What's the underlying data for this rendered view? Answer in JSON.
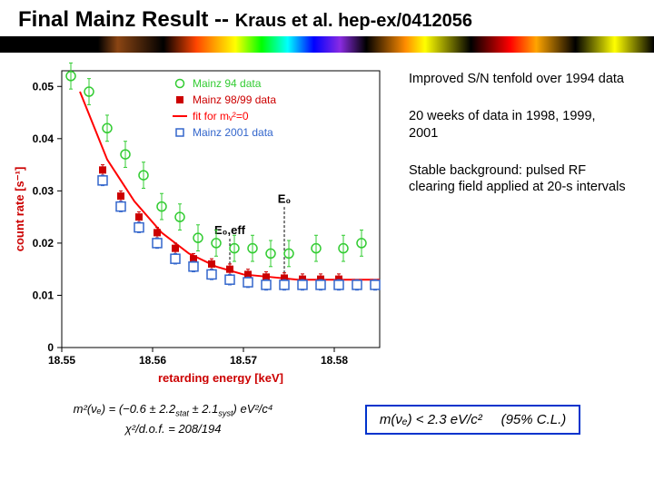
{
  "title": {
    "main": "Final Mainz Result -- ",
    "sub": "Kraus et al. hep-ex/0412056"
  },
  "notes": {
    "n1": "Improved S/N tenfold over 1994 data",
    "n2": "20 weeks of data in 1998, 1999, 2001",
    "n3": "Stable background: pulsed RF clearing field applied at 20-s intervals"
  },
  "formula": {
    "mass_sq": "m²(νₑ) = (−0.6 ± 2.2",
    "stat": "stat",
    "pm": " ± 2.1",
    "syst": "syst",
    "units1": ") eV²/c⁴",
    "chi2": "χ²/d.o.f. = 208/194",
    "limit": "m(νₑ) < 2.3 eV/c²",
    "cl": "(95% C.L.)"
  },
  "chart": {
    "type": "scatter",
    "background_color": "#ffffff",
    "axis_color": "#000000",
    "xlabel": "retarding energy  [keV]",
    "ylabel": "count rate [s⁻¹]",
    "label_color": "#cc0000",
    "label_fontsize": 13,
    "xlim": [
      18.55,
      18.585
    ],
    "xticks": [
      18.55,
      18.56,
      18.57,
      18.58
    ],
    "ylim": [
      0,
      0.053
    ],
    "yticks": [
      0,
      0.01,
      0.02,
      0.03,
      0.04,
      0.05
    ],
    "legend": {
      "items": [
        {
          "marker": "circle-open",
          "color": "#33cc33",
          "label": "Mainz 94 data"
        },
        {
          "marker": "square-filled",
          "color": "#cc0000",
          "label": "Mainz 98/99 data"
        },
        {
          "marker": "line",
          "color": "#ff0000",
          "label": "fit for mᵥ²=0"
        },
        {
          "marker": "square-open",
          "color": "#3366cc",
          "label": "Mainz 2001 data"
        }
      ],
      "fontsize": 12,
      "position": "upper-right-inset"
    },
    "annotations": {
      "E0": {
        "label": "E₀",
        "x": 18.5745,
        "color": "#000"
      },
      "E0eff": {
        "label": "E₀,eff",
        "x": 18.5685,
        "color": "#000"
      }
    },
    "series": {
      "mainz94": {
        "color": "#33cc33",
        "marker": "circle-open",
        "marker_size": 5,
        "x": [
          18.551,
          18.553,
          18.555,
          18.557,
          18.559,
          18.561,
          18.563,
          18.565,
          18.567,
          18.569,
          18.571,
          18.573,
          18.575,
          18.578,
          18.581,
          18.583
        ],
        "y": [
          0.052,
          0.049,
          0.042,
          0.037,
          0.033,
          0.027,
          0.025,
          0.021,
          0.02,
          0.019,
          0.019,
          0.018,
          0.018,
          0.019,
          0.019,
          0.02
        ],
        "yerr": 0.0025
      },
      "mainz9899": {
        "color": "#cc0000",
        "marker": "square-filled",
        "marker_size": 4,
        "x": [
          18.5545,
          18.5565,
          18.5585,
          18.5605,
          18.5625,
          18.5645,
          18.5665,
          18.5685,
          18.5705,
          18.5725,
          18.5745,
          18.5765,
          18.5785,
          18.5805
        ],
        "y": [
          0.034,
          0.029,
          0.025,
          0.022,
          0.019,
          0.017,
          0.016,
          0.015,
          0.014,
          0.0135,
          0.0133,
          0.0131,
          0.0131,
          0.0131
        ],
        "yerr": 0.001
      },
      "mainz2001": {
        "color": "#3366cc",
        "marker": "square-open",
        "marker_size": 5,
        "x": [
          18.5545,
          18.5565,
          18.5585,
          18.5605,
          18.5625,
          18.5645,
          18.5665,
          18.5685,
          18.5705,
          18.5725,
          18.5745,
          18.5765,
          18.5785,
          18.5805,
          18.5825,
          18.5845
        ],
        "y": [
          0.032,
          0.027,
          0.023,
          0.02,
          0.017,
          0.0155,
          0.014,
          0.013,
          0.0125,
          0.012,
          0.012,
          0.012,
          0.012,
          0.012,
          0.012,
          0.012
        ],
        "yerr": 0.001
      },
      "fit": {
        "color": "#ff0000",
        "line_width": 2,
        "x": [
          18.552,
          18.555,
          18.558,
          18.561,
          18.564,
          18.567,
          18.57,
          18.573,
          18.576,
          18.58,
          18.585
        ],
        "y": [
          0.049,
          0.036,
          0.028,
          0.022,
          0.018,
          0.0155,
          0.014,
          0.0135,
          0.013,
          0.013,
          0.013
        ]
      }
    }
  }
}
